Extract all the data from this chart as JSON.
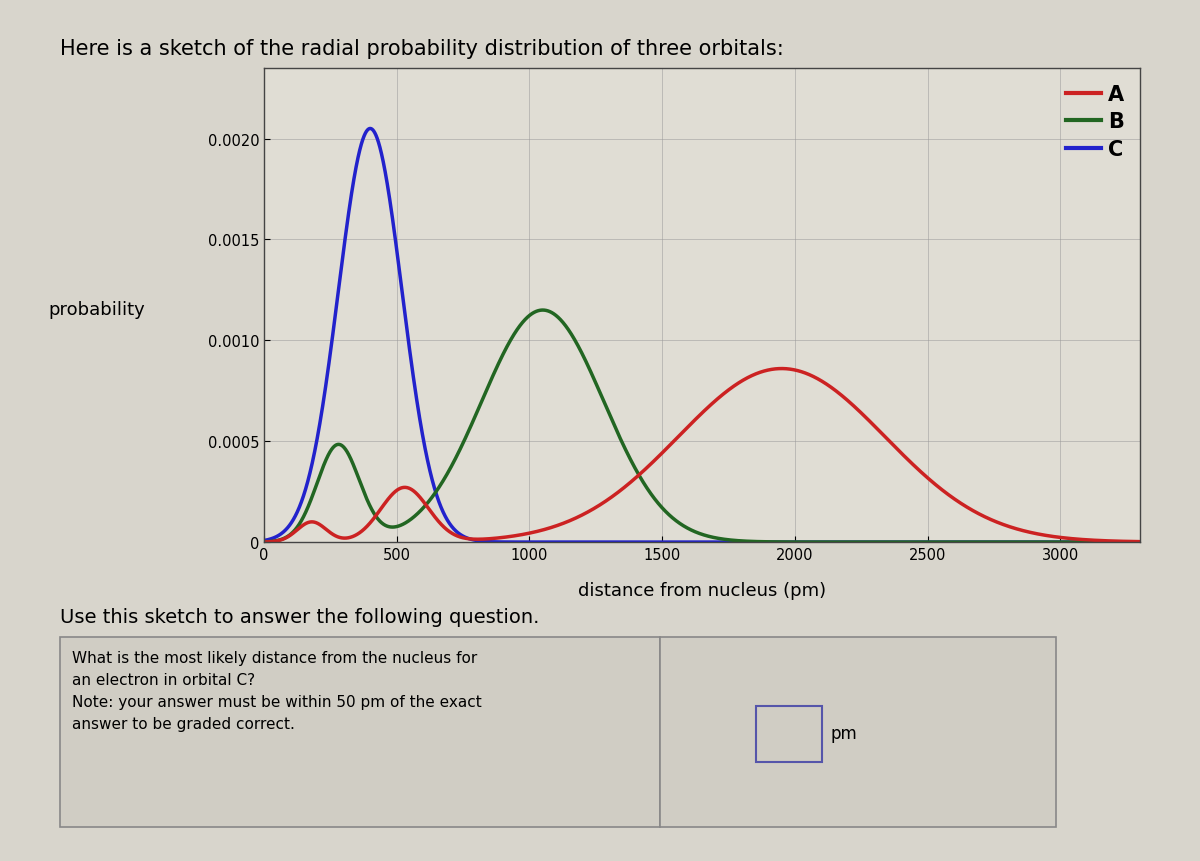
{
  "title": "Here is a sketch of the radial probability distribution of three orbitals:",
  "xlabel": "distance from nucleus (pm)",
  "ylabel": "probability",
  "xlim": [
    0,
    3300
  ],
  "ylim": [
    0,
    0.00235
  ],
  "yticks": [
    0.0,
    0.0005,
    0.001,
    0.0015,
    0.002
  ],
  "ytick_labels": [
    "0",
    "0.0005",
    "0.0010",
    "0.0015",
    "0.0020"
  ],
  "xticks": [
    0,
    500,
    1000,
    1500,
    2000,
    2500,
    3000
  ],
  "bg_color": "#d8d5cc",
  "plot_bg_color": "#e0ddd4",
  "grid_color": "#999999",
  "curve_A_color": "#cc2222",
  "curve_B_color": "#226622",
  "curve_C_color": "#2222cc",
  "legend_A": "A",
  "legend_B": "B",
  "legend_C": "C",
  "subtitle": "Use this sketch to answer the following question.",
  "question_line1": "What is the most likely distance from the nucleus for",
  "question_line2": "an electron in orbital C?",
  "question_line3": "Note: your answer must be within 50 pm of the exact",
  "question_line4": "answer to be graded correct.",
  "answer_label": "pm"
}
